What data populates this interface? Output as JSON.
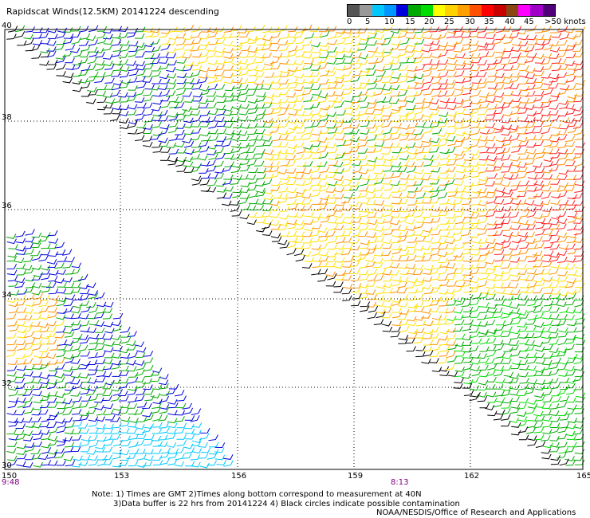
{
  "title": "Rapidscat Winds(12.5KM) 20141224 descending",
  "color_scale": {
    "labels": [
      "0",
      "5",
      "10",
      "15",
      "20",
      "25",
      "30",
      "35",
      "40",
      "45",
      ">50 knots"
    ],
    "colors": [
      "#555555",
      "#999999",
      "#00c8ff",
      "#0096ff",
      "#0000dd",
      "#00aa00",
      "#00dd00",
      "#ffff00",
      "#ffd200",
      "#ffa000",
      "#ff5000",
      "#ff0000",
      "#c80000",
      "#8b4513",
      "#ff00ff",
      "#a000c8",
      "#500078"
    ]
  },
  "latitudes": [
    "40",
    "38",
    "36",
    "34",
    "32",
    "30"
  ],
  "longitudes": [
    "150",
    "153",
    "156",
    "159",
    "162",
    "165"
  ],
  "times": [
    "9:48",
    "8:13"
  ],
  "notes": {
    "line1": "Note: 1) Times are GMT 2)Times along bottom correspond to measurement at 40N",
    "line2": "3)Data buffer is 22 hrs from 20141224 4) Black circles indicate possible contamination",
    "line3": "NOAA/NESDIS/Office of Research and Applications"
  },
  "swath_colors": {
    "edge": "#000000",
    "blue": "#0000dd",
    "green": "#00aa00",
    "lightgreen": "#00dd00",
    "yellow": "#ffe000",
    "orange": "#ff9000",
    "red": "#ff2020",
    "cyan": "#00c8ff"
  }
}
